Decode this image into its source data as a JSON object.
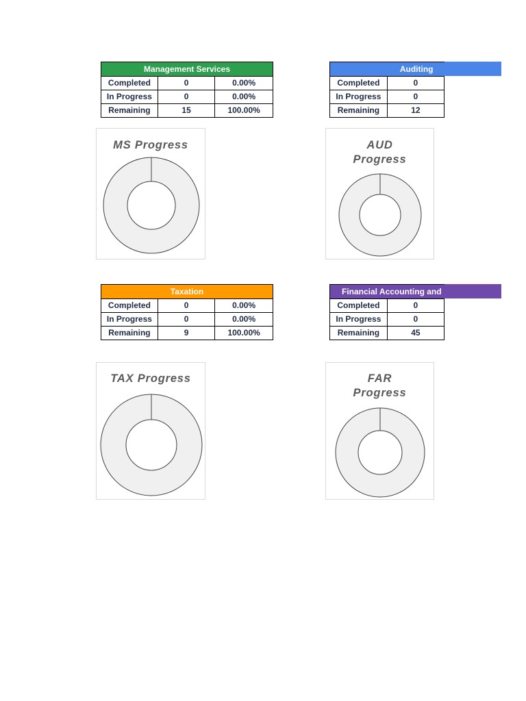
{
  "colors": {
    "ms": "#2e9e4f",
    "aud": "#4a86e8",
    "tax": "#ff9a00",
    "far": "#6f4aab",
    "donut_fill": "#f0f0f0",
    "donut_stroke": "#404040"
  },
  "tables": {
    "ms": {
      "title": "Management Services",
      "rows": [
        {
          "label": "Completed",
          "count": "0",
          "pct": "0.00%"
        },
        {
          "label": "In Progress",
          "count": "0",
          "pct": "0.00%"
        },
        {
          "label": "Remaining",
          "count": "15",
          "pct": "100.00%"
        }
      ]
    },
    "aud": {
      "title": "Auditing",
      "rows": [
        {
          "label": "Completed",
          "count": "0"
        },
        {
          "label": "In Progress",
          "count": "0"
        },
        {
          "label": "Remaining",
          "count": "12"
        }
      ]
    },
    "tax": {
      "title": "Taxation",
      "rows": [
        {
          "label": "Completed",
          "count": "0",
          "pct": "0.00%"
        },
        {
          "label": "In Progress",
          "count": "0",
          "pct": "0.00%"
        },
        {
          "label": "Remaining",
          "count": "9",
          "pct": "100.00%"
        }
      ]
    },
    "far": {
      "title": "Financial Accounting and",
      "rows": [
        {
          "label": "Completed",
          "count": "0"
        },
        {
          "label": "In Progress",
          "count": "0"
        },
        {
          "label": "Remaining",
          "count": "45"
        }
      ]
    }
  },
  "charts": {
    "ms": {
      "title_lines": [
        "MS Progress"
      ]
    },
    "aud": {
      "title_lines": [
        "AUD",
        "Progress"
      ]
    },
    "tax": {
      "title_lines": [
        "TAX Progress"
      ]
    },
    "far": {
      "title_lines": [
        "FAR",
        "Progress"
      ]
    }
  },
  "chart_data": [
    {
      "type": "pie",
      "title": "MS Progress",
      "categories": [
        "Completed",
        "In Progress",
        "Remaining"
      ],
      "values": [
        0,
        0,
        15
      ]
    },
    {
      "type": "pie",
      "title": "AUD Progress",
      "categories": [
        "Completed",
        "In Progress",
        "Remaining"
      ],
      "values": [
        0,
        0,
        12
      ]
    },
    {
      "type": "pie",
      "title": "TAX Progress",
      "categories": [
        "Completed",
        "In Progress",
        "Remaining"
      ],
      "values": [
        0,
        0,
        9
      ]
    },
    {
      "type": "pie",
      "title": "FAR Progress",
      "categories": [
        "Completed",
        "In Progress",
        "Remaining"
      ],
      "values": [
        0,
        0,
        45
      ]
    }
  ]
}
